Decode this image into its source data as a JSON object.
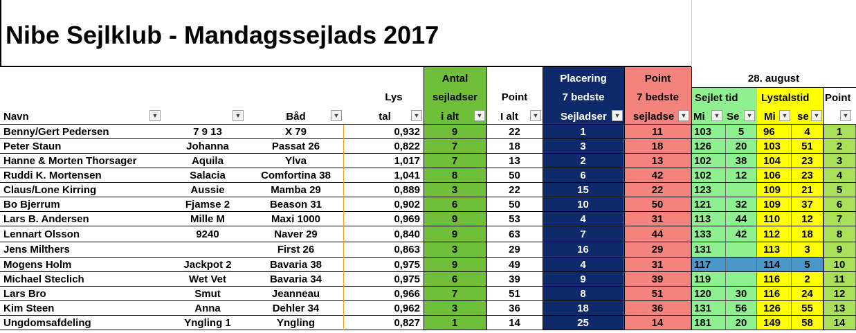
{
  "title": "Nibe Sejlklub - Mandagssejlads 2017",
  "date_header": "28. august",
  "headers": {
    "lys_1": "Lys",
    "lys_2": "tal",
    "antal_1": "Antal",
    "antal_2": "sejladser",
    "antal_3": "i alt",
    "point_1": "Point",
    "point_2": "I alt",
    "placering_1": "Placering",
    "placering_2": "7 bedste",
    "placering_3": "Sejladser",
    "point7_1": "Point",
    "point7_2": "7 bedste",
    "point7_3": "sejladse",
    "navn": "Navn",
    "baad": "Båd",
    "sejlet_tid": "Sejlet tid",
    "lystalstid": "Lystalstid",
    "point_race": "Point",
    "min1": "Mi",
    "sek1": "Se",
    "min2": "Mi",
    "sek2": "se"
  },
  "colors": {
    "green_dark": "#6fbf3a",
    "navy": "#0f2a6b",
    "salmon": "#f4837d",
    "light_green": "#8ef08e",
    "yellow": "#ffff00",
    "blue_highlight": "#4b97c9",
    "lime": "#a8e05a"
  },
  "rows": [
    {
      "navn": "Benny/Gert Pedersen",
      "sail": "7 9 13",
      "baad": "X 79",
      "lystal": "0,932",
      "antal": "9",
      "point": "22",
      "placering": "1",
      "point7": "11",
      "smin": "103",
      "ssek": "5",
      "lmin": "96",
      "lsek": "4",
      "rpoint": "1"
    },
    {
      "navn": "Peter Staun",
      "sail": "Johanna",
      "baad": "Passat 26",
      "lystal": "0,822",
      "antal": "7",
      "point": "18",
      "placering": "3",
      "point7": "18",
      "smin": "126",
      "ssek": "20",
      "lmin": "103",
      "lsek": "51",
      "rpoint": "2"
    },
    {
      "navn": "Hanne & Morten Thorsager",
      "sail": "Aquila",
      "baad": "Ylva",
      "lystal": "1,017",
      "antal": "7",
      "point": "13",
      "placering": "2",
      "point7": "13",
      "smin": "102",
      "ssek": "38",
      "lmin": "104",
      "lsek": "23",
      "rpoint": "3"
    },
    {
      "navn": "Ruddi K. Mortensen",
      "sail": "Salacia",
      "baad": "Comfortina 38",
      "lystal": "1,041",
      "antal": "8",
      "point": "50",
      "placering": "6",
      "point7": "42",
      "smin": "102",
      "ssek": "12",
      "lmin": "106",
      "lsek": "23",
      "rpoint": "4"
    },
    {
      "navn": "Claus/Lone Kirring",
      "sail": "Aussie",
      "baad": "Mamba 29",
      "lystal": "0,889",
      "antal": "3",
      "point": "22",
      "placering": "15",
      "point7": "22",
      "smin": "123",
      "ssek": "",
      "lmin": "109",
      "lsek": "21",
      "rpoint": "5"
    },
    {
      "navn": "Bo Bjerrum",
      "sail": "Fjamse 2",
      "baad": "Beason 31",
      "lystal": "0,902",
      "antal": "6",
      "point": "50",
      "placering": "10",
      "point7": "50",
      "smin": "121",
      "ssek": "32",
      "lmin": "109",
      "lsek": "37",
      "rpoint": "6"
    },
    {
      "navn": "Lars B. Andersen",
      "sail": "Mille M",
      "baad": "Maxi 1000",
      "lystal": "0,969",
      "antal": "9",
      "point": "53",
      "placering": "4",
      "point7": "31",
      "smin": "113",
      "ssek": "44",
      "lmin": "110",
      "lsek": "12",
      "rpoint": "7"
    },
    {
      "navn": "Lennart Olsson",
      "sail": "9240",
      "baad": "Naver 29",
      "lystal": "0,840",
      "antal": "9",
      "point": "63",
      "placering": "7",
      "point7": "44",
      "smin": "133",
      "ssek": "42",
      "lmin": "112",
      "lsek": "18",
      "rpoint": "8"
    },
    {
      "navn": "Jens Milthers",
      "sail": "",
      "baad": "First 26",
      "lystal": "0,863",
      "antal": "3",
      "point": "29",
      "placering": "16",
      "point7": "29",
      "smin": "131",
      "ssek": "",
      "lmin": "113",
      "lsek": "3",
      "rpoint": "9"
    },
    {
      "navn": "Mogens Holm",
      "sail": "Jackpot 2",
      "baad": "Bavaria 38",
      "lystal": "0,975",
      "antal": "9",
      "point": "49",
      "placering": "4",
      "point7": "31",
      "smin": "117",
      "ssek": "",
      "lmin": "114",
      "lsek": "5",
      "rpoint": "10",
      "highlight": true
    },
    {
      "navn": "Michael Steclich",
      "sail": "Wet Vet",
      "baad": "Bavaria 34",
      "lystal": "0,975",
      "antal": "6",
      "point": "39",
      "placering": "9",
      "point7": "39",
      "smin": "119",
      "ssek": "",
      "lmin": "116",
      "lsek": "2",
      "rpoint": "11"
    },
    {
      "navn": "Lars Bro",
      "sail": "Smut",
      "baad": "Jeanneau",
      "lystal": "0,966",
      "antal": "7",
      "point": "51",
      "placering": "8",
      "point7": "51",
      "smin": "120",
      "ssek": "30",
      "lmin": "116",
      "lsek": "24",
      "rpoint": "12"
    },
    {
      "navn": "Kim Steen",
      "sail": "Anna",
      "baad": "Dehler 34",
      "lystal": "0,962",
      "antal": "3",
      "point": "36",
      "placering": "18",
      "point7": "36",
      "smin": "131",
      "ssek": "56",
      "lmin": "126",
      "lsek": "55",
      "rpoint": "13"
    },
    {
      "navn": "Ungdomsafdeling",
      "sail": "Yngling 1",
      "baad": "Yngling",
      "lystal": "0,827",
      "antal": "1",
      "point": "14",
      "placering": "25",
      "point7": "14",
      "smin": "181",
      "ssek": "20",
      "lmin": "149",
      "lsek": "58",
      "rpoint": "14"
    }
  ]
}
